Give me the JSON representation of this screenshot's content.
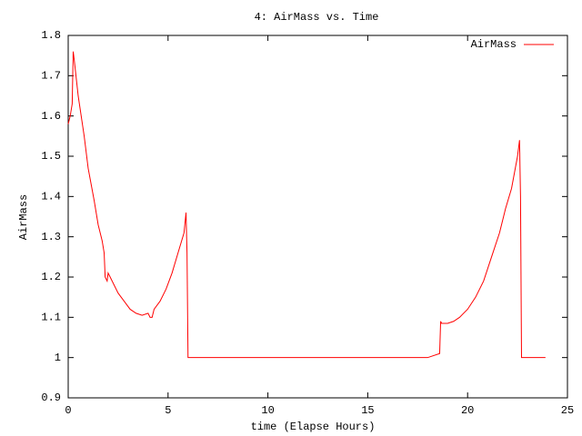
{
  "chart_data": {
    "type": "line",
    "title": "4: AirMass vs. Time",
    "x_label": "time (Elapse Hours)",
    "y_label": "AirMass",
    "xlim": [
      0,
      25
    ],
    "xticks": [
      0,
      5,
      10,
      15,
      20,
      25
    ],
    "ylim": [
      0.9,
      1.8
    ],
    "yticks": [
      0.9,
      1,
      1.1,
      1.2,
      1.3,
      1.4,
      1.5,
      1.6,
      1.7,
      1.8
    ],
    "legend": "top-right",
    "x": [
      0,
      0.1,
      0.2,
      0.25,
      0.3,
      0.5,
      0.8,
      1.0,
      1.3,
      1.5,
      1.7,
      1.8,
      1.85,
      1.95,
      2.0,
      2.1,
      2.3,
      2.5,
      2.8,
      3.1,
      3.4,
      3.7,
      4.0,
      4.1,
      4.2,
      4.3,
      4.6,
      4.9,
      5.2,
      5.5,
      5.8,
      5.9,
      5.95,
      6.0,
      18.0,
      18.6,
      18.65,
      18.7,
      19.0,
      19.3,
      19.6,
      20.0,
      20.4,
      20.8,
      21.2,
      21.6,
      21.9,
      22.2,
      22.5,
      22.6,
      22.65,
      22.7,
      23.9
    ],
    "series": [
      {
        "name": "AirMass",
        "color": "#ff0000",
        "values": [
          1.58,
          1.6,
          1.63,
          1.76,
          1.74,
          1.65,
          1.55,
          1.47,
          1.39,
          1.33,
          1.29,
          1.26,
          1.2,
          1.19,
          1.21,
          1.2,
          1.18,
          1.16,
          1.14,
          1.12,
          1.11,
          1.105,
          1.11,
          1.1,
          1.1,
          1.12,
          1.14,
          1.17,
          1.21,
          1.26,
          1.31,
          1.36,
          1.26,
          1.0,
          1.0,
          1.01,
          1.09,
          1.085,
          1.085,
          1.09,
          1.1,
          1.12,
          1.15,
          1.19,
          1.25,
          1.31,
          1.37,
          1.42,
          1.5,
          1.54,
          1.4,
          1.0,
          1.0
        ]
      }
    ]
  }
}
